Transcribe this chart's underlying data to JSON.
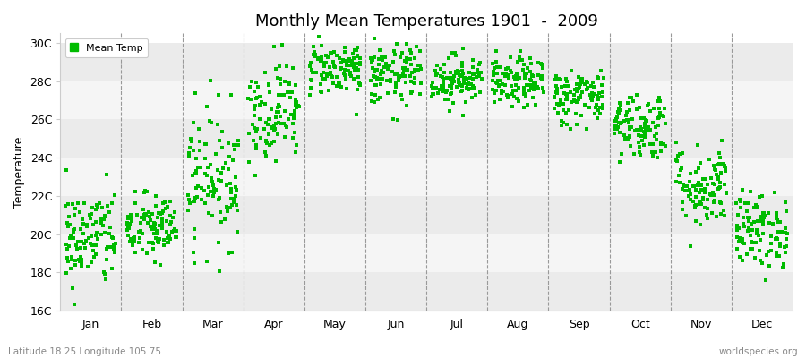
{
  "title": "Monthly Mean Temperatures 1901  -  2009",
  "ylabel": "Temperature",
  "xlabel": "",
  "subtitle_left": "Latitude 18.25 Longitude 105.75",
  "subtitle_right": "worldspecies.org",
  "legend_label": "Mean Temp",
  "ylim": [
    16,
    30.5
  ],
  "ytick_labels": [
    "16C",
    "18C",
    "20C",
    "22C",
    "24C",
    "26C",
    "28C",
    "30C"
  ],
  "ytick_values": [
    16,
    18,
    20,
    22,
    24,
    26,
    28,
    30
  ],
  "months": [
    "Jan",
    "Feb",
    "Mar",
    "Apr",
    "May",
    "Jun",
    "Jul",
    "Aug",
    "Sep",
    "Oct",
    "Nov",
    "Dec"
  ],
  "dot_color": "#00bb00",
  "bg_color": "#ffffff",
  "plot_bg_color": "#ffffff",
  "band_color_even": "#ebebeb",
  "band_color_odd": "#f5f5f5",
  "grid_color": "#999999",
  "num_years": 109,
  "monthly_mean_temps": [
    19.8,
    20.3,
    23.0,
    26.5,
    28.7,
    28.3,
    28.1,
    27.9,
    27.2,
    25.7,
    22.5,
    20.2
  ],
  "monthly_std_temps": [
    1.3,
    0.9,
    1.8,
    1.3,
    0.7,
    0.8,
    0.65,
    0.65,
    0.75,
    0.9,
    1.1,
    1.0
  ],
  "random_seed": 42
}
